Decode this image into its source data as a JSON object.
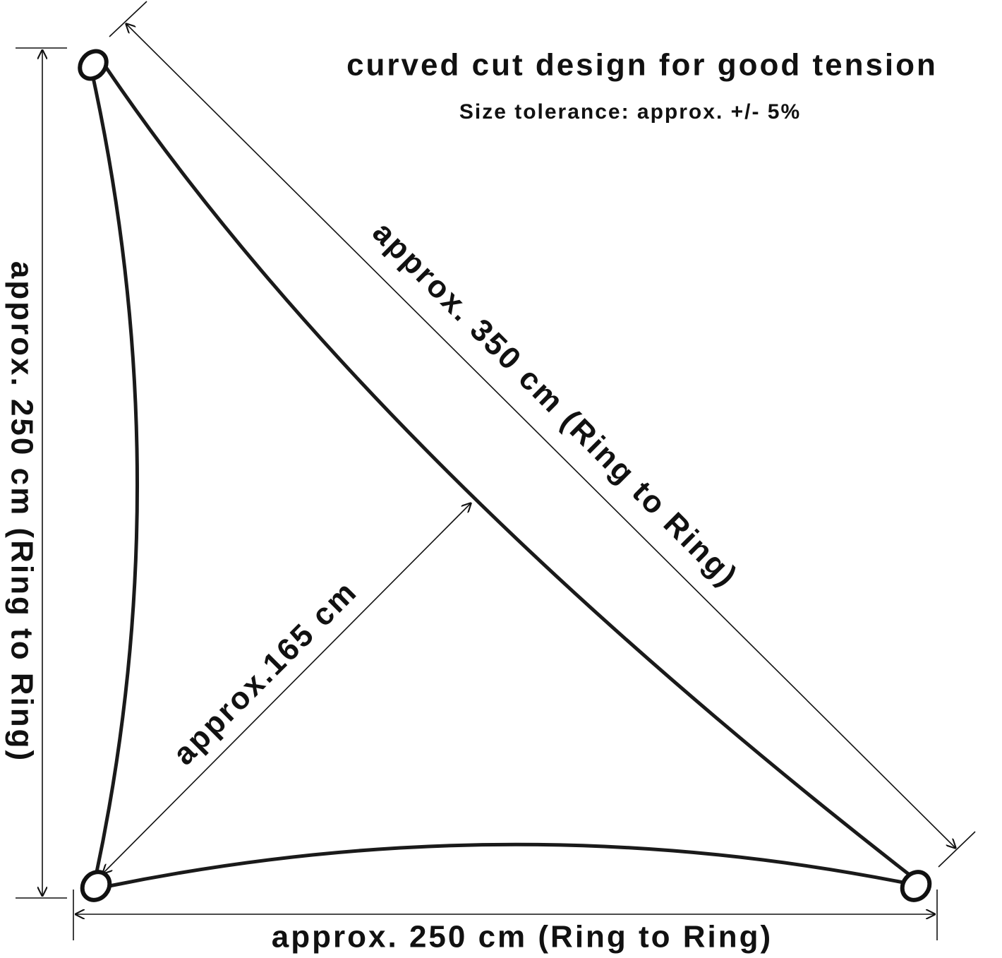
{
  "header": {
    "title": "curved cut design for good tension",
    "subtitle": "Size tolerance: approx. +/- 5%"
  },
  "labels": {
    "height": "approx. 250 cm (Ring to Ring)",
    "hypotenuse": "approx. 350 cm (Ring to Ring)",
    "altitude": "approx.165 cm",
    "base": "approx. 250 cm (Ring to Ring)"
  }
}
